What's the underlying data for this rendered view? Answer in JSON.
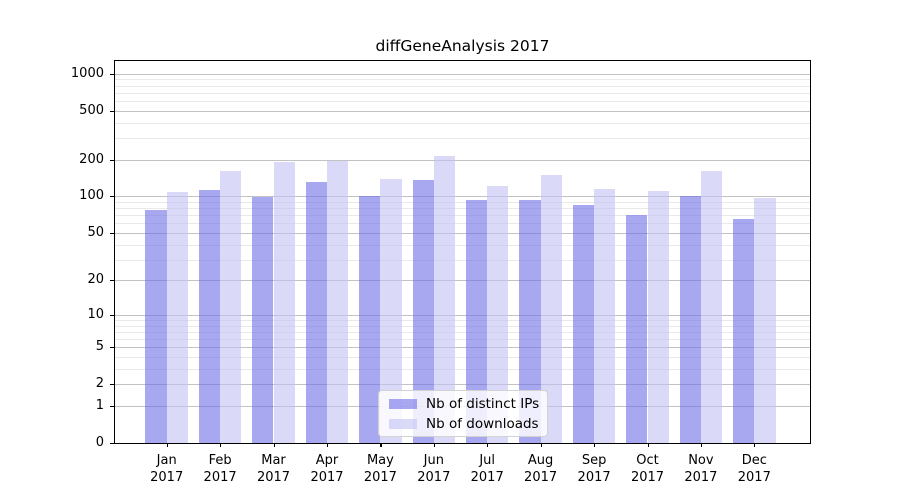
{
  "figure": {
    "title": "diffGeneAnalysis 2017"
  },
  "chart_data": {
    "type": "bar",
    "title": "diffGeneAnalysis 2017",
    "xlabel": "",
    "ylabel": "",
    "yscale": "symlog (position proportional to log(1+value))",
    "grid": true,
    "legend_position": "lower center",
    "ylim": [
      0,
      1270
    ],
    "y_major_ticks": [
      0,
      1,
      2,
      5,
      10,
      20,
      50,
      100,
      200,
      500,
      1000
    ],
    "y_minor_gridlines": [
      3,
      4,
      6,
      7,
      8,
      9,
      30,
      40,
      60,
      70,
      80,
      90,
      300,
      400,
      600,
      700,
      800,
      900
    ],
    "categories": [
      "Jan 2017",
      "Feb 2017",
      "Mar 2017",
      "Apr 2017",
      "May 2017",
      "Jun 2017",
      "Jul 2017",
      "Aug 2017",
      "Sep 2017",
      "Oct 2017",
      "Nov 2017",
      "Dec 2017"
    ],
    "series": [
      {
        "name": "Nb of distinct IPs",
        "color": "rgba(110,110,232,0.6)",
        "values": [
          78,
          113,
          99,
          132,
          100,
          135,
          94,
          94,
          85,
          70,
          101,
          65
        ]
      },
      {
        "name": "Nb of downloads",
        "color": "rgba(193,193,243,0.6)",
        "values": [
          108,
          160,
          190,
          195,
          140,
          215,
          122,
          150,
          116,
          110,
          160,
          97
        ]
      }
    ]
  },
  "colors": {
    "axis_spine": "#000000",
    "major_grid": "#c2c2c2",
    "minor_grid": "#e9e9e9",
    "legend_border": "#d2d2d2",
    "legend_background": "rgba(255,255,255,0.8)"
  }
}
